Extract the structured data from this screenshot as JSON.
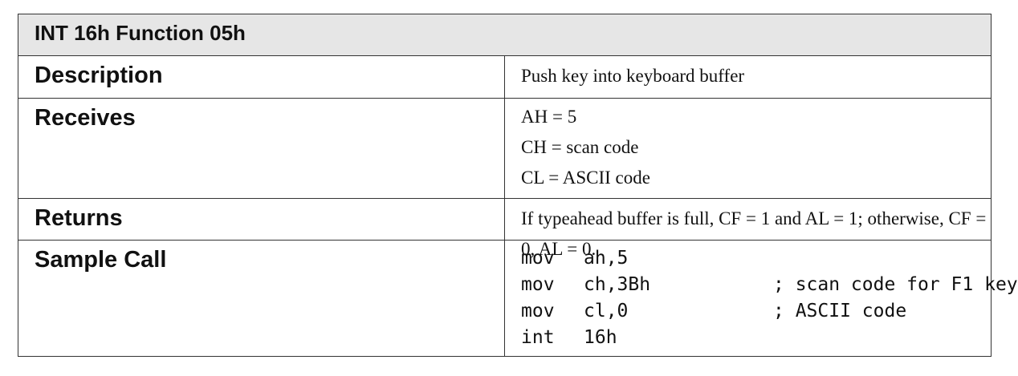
{
  "title": "INT 16h Function 05h",
  "rows": {
    "description": {
      "label": "Description",
      "text": "Push key into keyboard buffer"
    },
    "receives": {
      "label": "Receives",
      "lines": [
        "AH = 5",
        "CH = scan code",
        "CL = ASCII code"
      ]
    },
    "returns": {
      "label": "Returns",
      "text": "If typeahead buffer is full, CF = 1 and AL = 1; otherwise, CF = 0, AL = 0."
    },
    "sample_call": {
      "label": "Sample Call",
      "code": [
        {
          "op": "mov",
          "arg": "ah,5",
          "comment": ""
        },
        {
          "op": "mov",
          "arg": "ch,3Bh",
          "comment": "; scan code for F1 key"
        },
        {
          "op": "mov",
          "arg": "cl,0",
          "comment": "; ASCII code"
        },
        {
          "op": "int",
          "arg": "16h",
          "comment": ""
        }
      ]
    }
  }
}
